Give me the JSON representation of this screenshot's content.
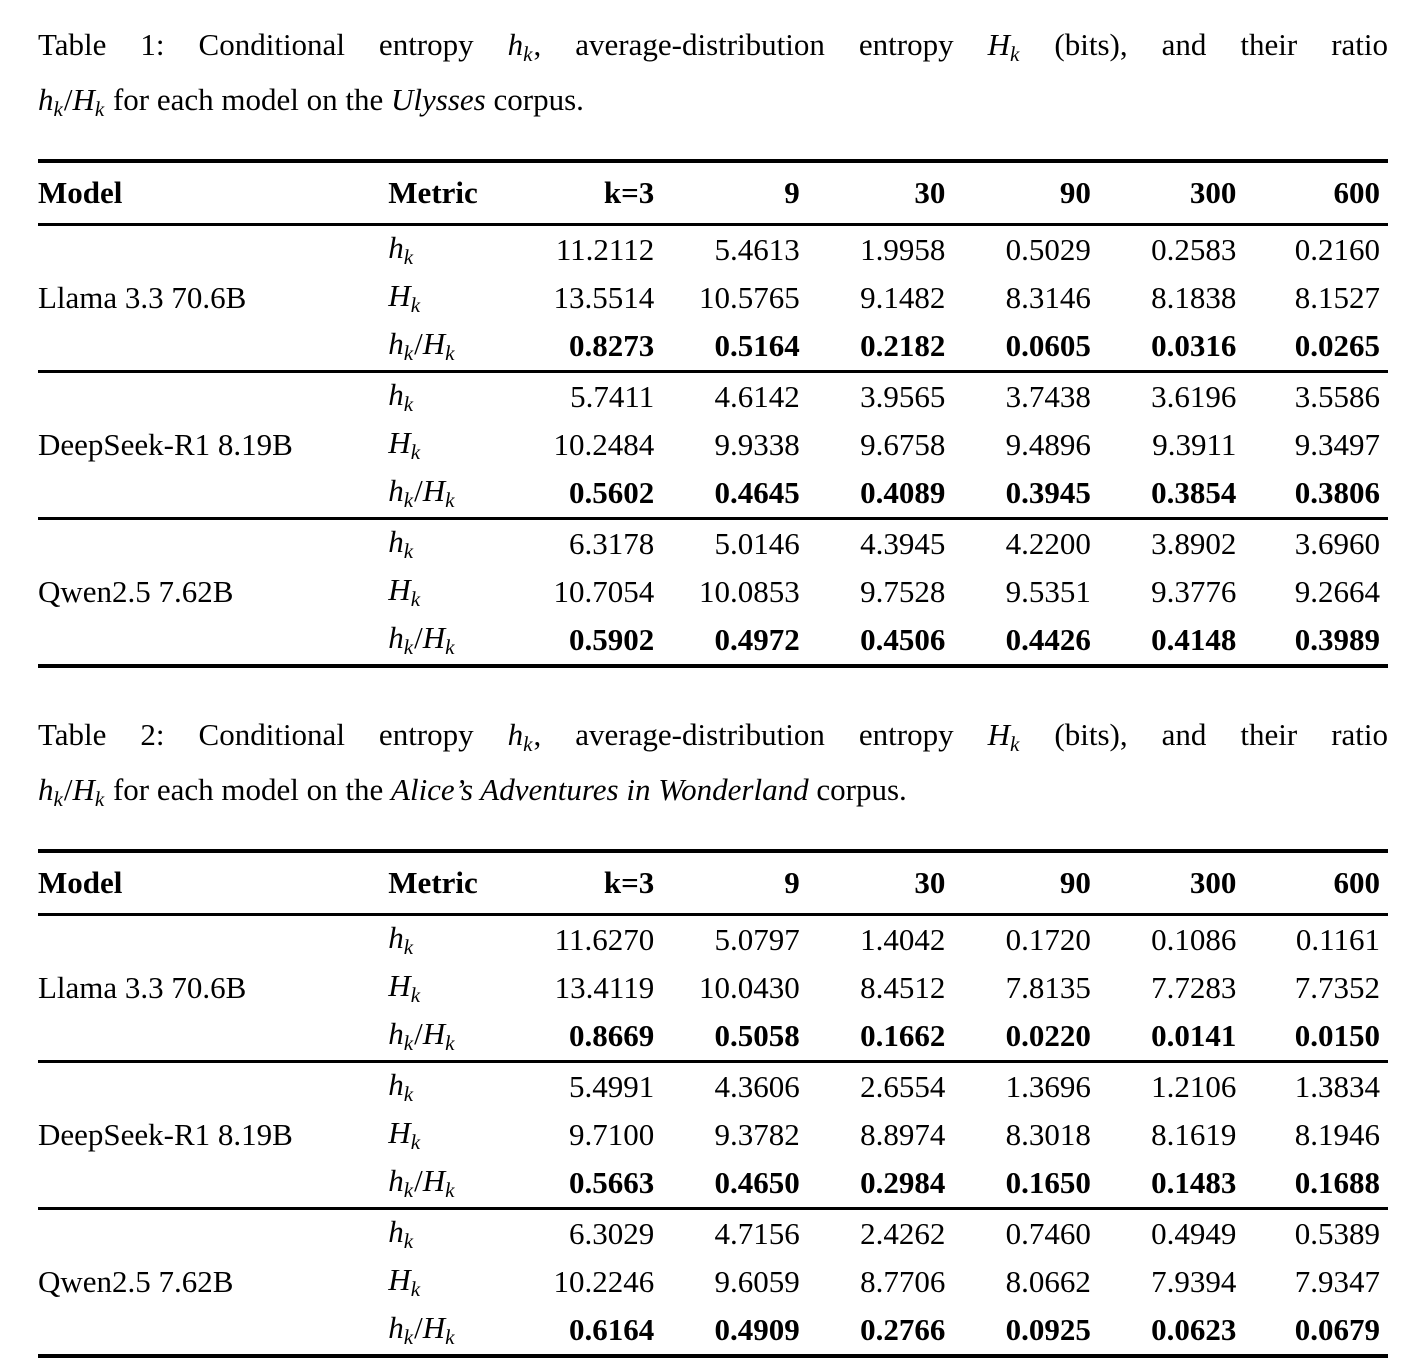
{
  "page": {
    "background": "#ffffff",
    "text_color": "#000000",
    "rule_color": "#000000"
  },
  "captions": [
    {
      "line1": [
        {
          "t": "Table 1: Conditional entropy ",
          "s": "plain"
        },
        {
          "t": "h",
          "s": "mi"
        },
        {
          "t": "k",
          "s": "msub"
        },
        {
          "t": ", average-distribution entropy ",
          "s": "plain"
        },
        {
          "t": "H",
          "s": "mi"
        },
        {
          "t": "k",
          "s": "msub"
        },
        {
          "t": " (bits), and their ratio",
          "s": "plain"
        }
      ],
      "line2": [
        {
          "t": "h",
          "s": "mi"
        },
        {
          "t": "k",
          "s": "msub"
        },
        {
          "t": "/",
          "s": "plain"
        },
        {
          "t": "H",
          "s": "mi"
        },
        {
          "t": "k",
          "s": "msub"
        },
        {
          "t": " for each model on the ",
          "s": "plain"
        },
        {
          "t": "Ulysses",
          "s": "italic"
        },
        {
          "t": " corpus.",
          "s": "plain"
        }
      ]
    },
    {
      "line1": [
        {
          "t": "Table 2: Conditional entropy ",
          "s": "plain"
        },
        {
          "t": "h",
          "s": "mi"
        },
        {
          "t": "k",
          "s": "msub"
        },
        {
          "t": ", average-distribution entropy ",
          "s": "plain"
        },
        {
          "t": "H",
          "s": "mi"
        },
        {
          "t": "k",
          "s": "msub"
        },
        {
          "t": " (bits), and their ratio",
          "s": "plain"
        }
      ],
      "line2": [
        {
          "t": "h",
          "s": "mi"
        },
        {
          "t": "k",
          "s": "msub"
        },
        {
          "t": "/",
          "s": "plain"
        },
        {
          "t": "H",
          "s": "mi"
        },
        {
          "t": "k",
          "s": "msub"
        },
        {
          "t": " for each model on the ",
          "s": "plain"
        },
        {
          "t": "Alice’s Adventures in Wonderland",
          "s": "italic"
        },
        {
          "t": " corpus.",
          "s": "plain"
        }
      ]
    }
  ],
  "header": {
    "model": "Model",
    "metric": "Metric",
    "k_columns": [
      "k=3",
      "9",
      "30",
      "90",
      "300",
      "600"
    ]
  },
  "metric_labels": {
    "hk": [
      {
        "t": "h",
        "s": "mi"
      },
      {
        "t": "k",
        "s": "msub"
      }
    ],
    "Hk": [
      {
        "t": "H",
        "s": "mi"
      },
      {
        "t": "k",
        "s": "msub"
      }
    ],
    "ratio": [
      {
        "t": "h",
        "s": "mi"
      },
      {
        "t": "k",
        "s": "msub"
      },
      {
        "t": "/",
        "s": "plain"
      },
      {
        "t": "H",
        "s": "mi"
      },
      {
        "t": "k",
        "s": "msub"
      }
    ]
  },
  "tables": [
    {
      "blocks": [
        {
          "model": "Llama 3.3 70.6B",
          "hk": [
            "11.2112",
            "5.4613",
            "1.9958",
            "0.5029",
            "0.2583",
            "0.2160"
          ],
          "Hk": [
            "13.5514",
            "10.5765",
            "9.1482",
            "8.3146",
            "8.1838",
            "8.1527"
          ],
          "ratio": [
            "0.8273",
            "0.5164",
            "0.2182",
            "0.0605",
            "0.0316",
            "0.0265"
          ]
        },
        {
          "model": "DeepSeek-R1 8.19B",
          "hk": [
            "5.7411",
            "4.6142",
            "3.9565",
            "3.7438",
            "3.6196",
            "3.5586"
          ],
          "Hk": [
            "10.2484",
            "9.9338",
            "9.6758",
            "9.4896",
            "9.3911",
            "9.3497"
          ],
          "ratio": [
            "0.5602",
            "0.4645",
            "0.4089",
            "0.3945",
            "0.3854",
            "0.3806"
          ]
        },
        {
          "model": "Qwen2.5 7.62B",
          "hk": [
            "6.3178",
            "5.0146",
            "4.3945",
            "4.2200",
            "3.8902",
            "3.6960"
          ],
          "Hk": [
            "10.7054",
            "10.0853",
            "9.7528",
            "9.5351",
            "9.3776",
            "9.2664"
          ],
          "ratio": [
            "0.5902",
            "0.4972",
            "0.4506",
            "0.4426",
            "0.4148",
            "0.3989"
          ]
        }
      ]
    },
    {
      "blocks": [
        {
          "model": "Llama 3.3 70.6B",
          "hk": [
            "11.6270",
            "5.0797",
            "1.4042",
            "0.1720",
            "0.1086",
            "0.1161"
          ],
          "Hk": [
            "13.4119",
            "10.0430",
            "8.4512",
            "7.8135",
            "7.7283",
            "7.7352"
          ],
          "ratio": [
            "0.8669",
            "0.5058",
            "0.1662",
            "0.0220",
            "0.0141",
            "0.0150"
          ]
        },
        {
          "model": "DeepSeek-R1 8.19B",
          "hk": [
            "5.4991",
            "4.3606",
            "2.6554",
            "1.3696",
            "1.2106",
            "1.3834"
          ],
          "Hk": [
            "9.7100",
            "9.3782",
            "8.8974",
            "8.3018",
            "8.1619",
            "8.1946"
          ],
          "ratio": [
            "0.5663",
            "0.4650",
            "0.2984",
            "0.1650",
            "0.1483",
            "0.1688"
          ]
        },
        {
          "model": "Qwen2.5 7.62B",
          "hk": [
            "6.3029",
            "4.7156",
            "2.4262",
            "0.7460",
            "0.4949",
            "0.5389"
          ],
          "Hk": [
            "10.2246",
            "9.6059",
            "8.7706",
            "8.0662",
            "7.9394",
            "7.9347"
          ],
          "ratio": [
            "0.6164",
            "0.4909",
            "0.2766",
            "0.0925",
            "0.0623",
            "0.0679"
          ]
        }
      ]
    }
  ]
}
